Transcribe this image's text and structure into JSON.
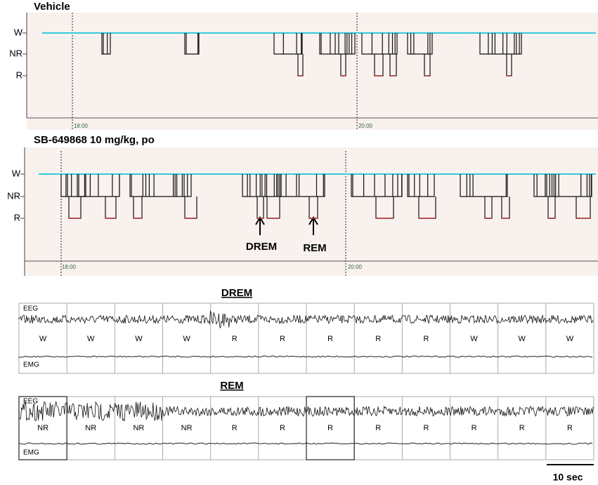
{
  "panels": [
    {
      "title": "Vehicle",
      "y_labels": [
        "W",
        "NR",
        "R"
      ],
      "time_labels": [
        "18:00",
        "20:00"
      ]
    },
    {
      "title": "SB-649868 10 mg/kg, po",
      "y_labels": [
        "W",
        "NR",
        "R"
      ],
      "time_labels": [
        "18:00",
        "20:00"
      ],
      "annotations": [
        "DREM",
        "REM"
      ]
    }
  ],
  "traces": [
    {
      "title": "DREM",
      "channels": [
        "EEG",
        "EMG"
      ],
      "stages": [
        "W",
        "W",
        "W",
        "W",
        "R",
        "R",
        "R",
        "R",
        "R",
        "W",
        "W",
        "W"
      ]
    },
    {
      "title": "REM",
      "channels": [
        "EEG",
        "EMG"
      ],
      "stages": [
        "NR",
        "NR",
        "NR",
        "NR",
        "R",
        "R",
        "R",
        "R",
        "R",
        "R",
        "R",
        "R"
      ]
    }
  ],
  "scale_bar": "10 sec"
}
